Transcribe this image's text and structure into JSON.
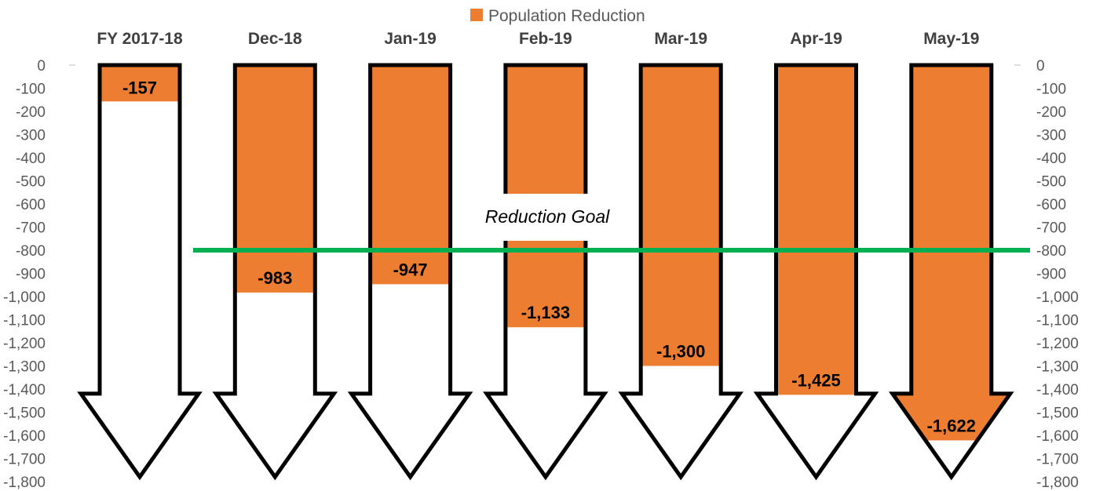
{
  "chart_data": {
    "type": "bar",
    "orientation": "vertical-arrows",
    "categories": [
      "FY 2017-18",
      "Dec-18",
      "Jan-19",
      "Feb-19",
      "Mar-19",
      "Apr-19",
      "May-19"
    ],
    "series": [
      {
        "name": "Population Reduction",
        "values": [
          -157,
          -983,
          -947,
          -1133,
          -1300,
          -1425,
          -1622
        ]
      }
    ],
    "data_labels": [
      "-157",
      "-983",
      "-947",
      "-1,133",
      "-1,300",
      "-1,425",
      "-1,622"
    ],
    "ylim": [
      -1800,
      0
    ],
    "yticks": [
      0,
      -100,
      -200,
      -300,
      -400,
      -500,
      -600,
      -700,
      -800,
      -900,
      -1000,
      -1100,
      -1200,
      -1300,
      -1400,
      -1500,
      -1600,
      -1700,
      -1800
    ],
    "ytick_labels": [
      "0",
      "-100",
      "-200",
      "-300",
      "-400",
      "-500",
      "-600",
      "-700",
      "-800",
      "-900",
      "-1,000",
      "-1,100",
      "-1,200",
      "-1,300",
      "-1,400",
      "-1,500",
      "-1,600",
      "-1,700",
      "-1,800"
    ],
    "arrow_tip_value": -1780,
    "arrow_shaft_end_value": -1420,
    "goal": {
      "value": -800,
      "label": "Reduction Goal",
      "color": "#00B050"
    },
    "legend": {
      "position": "top-center",
      "label": "Population Reduction"
    },
    "secondary_axis": true,
    "grid": false,
    "colors": {
      "bar": "#ED7D31",
      "outline": "#000000",
      "tick_text": "#595959",
      "category_text": "#404040"
    }
  }
}
